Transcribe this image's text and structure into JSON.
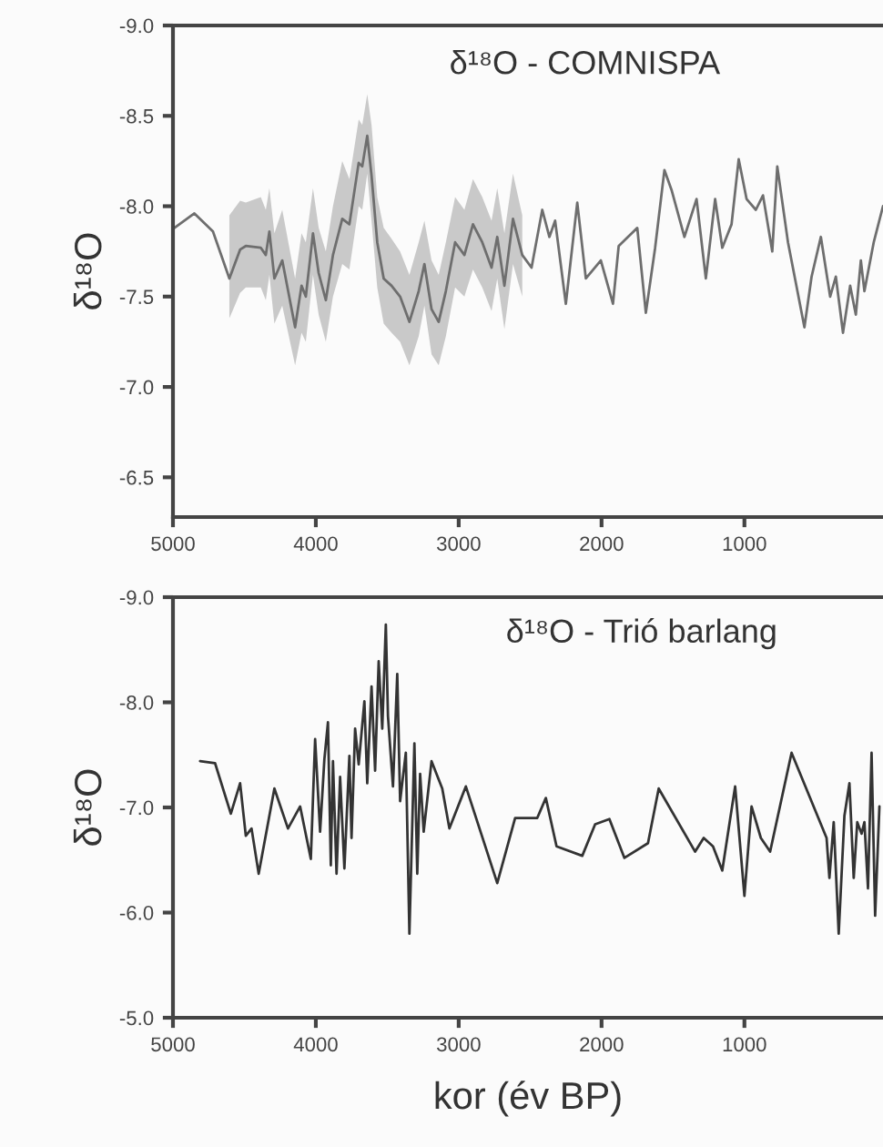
{
  "chart_data": [
    {
      "type": "line",
      "title": "δ¹⁸O - COMNISPA",
      "ylabel": "δ¹⁸O",
      "xlim": [
        5000,
        30
      ],
      "xticks": [
        5000,
        4000,
        3000,
        2000,
        1000
      ],
      "ylim": [
        -6.28,
        -9.0
      ],
      "yticks": [
        {
          "value": -9,
          "label": "-9.0"
        },
        -8.5,
        {
          "value": -8,
          "label": "-8.0"
        },
        -7.5,
        {
          "value": -7,
          "label": "-7.0"
        },
        -6.5
      ],
      "grid": false,
      "line_style": "solid",
      "series": [
        {
          "color": "#6e6e6e",
          "x": [
            4990,
            4850,
            4720,
            4605,
            4530,
            4490,
            4385,
            4350,
            4325,
            4290,
            4235,
            4145,
            4100,
            4070,
            4020,
            3980,
            3930,
            3880,
            3815,
            3765,
            3700,
            3675,
            3640,
            3610,
            3570,
            3525,
            3470,
            3410,
            3345,
            3280,
            3240,
            3190,
            3140,
            3090,
            3025,
            2960,
            2900,
            2835,
            2770,
            2730,
            2680,
            2620,
            2555,
            2490,
            2415,
            2365,
            2325,
            2250,
            2170,
            2110,
            2005,
            1920,
            1880,
            1815,
            1750,
            1690,
            1625,
            1560,
            1510,
            1420,
            1335,
            1270,
            1205,
            1155,
            1090,
            1040,
            985,
            920,
            870,
            805,
            770,
            695,
            580,
            530,
            465,
            400,
            360,
            310,
            260,
            220,
            185,
            160,
            95,
            30
          ],
          "values": [
            -7.88,
            -7.96,
            -7.86,
            -7.6,
            -7.76,
            -7.78,
            -7.77,
            -7.73,
            -7.86,
            -7.6,
            -7.7,
            -7.33,
            -7.56,
            -7.5,
            -7.85,
            -7.63,
            -7.48,
            -7.73,
            -7.93,
            -7.9,
            -8.24,
            -8.22,
            -8.39,
            -8.17,
            -7.8,
            -7.6,
            -7.56,
            -7.5,
            -7.36,
            -7.53,
            -7.68,
            -7.43,
            -7.36,
            -7.53,
            -7.8,
            -7.73,
            -7.9,
            -7.8,
            -7.66,
            -7.83,
            -7.56,
            -7.93,
            -7.73,
            -7.66,
            -7.98,
            -7.83,
            -7.92,
            -7.46,
            -8.02,
            -7.6,
            -7.7,
            -7.46,
            -7.78,
            -7.83,
            -7.88,
            -7.41,
            -7.77,
            -8.2,
            -8.09,
            -7.83,
            -8.04,
            -7.6,
            -8.04,
            -7.77,
            -7.9,
            -8.26,
            -8.04,
            -7.98,
            -8.06,
            -7.75,
            -8.22,
            -7.8,
            -7.33,
            -7.61,
            -7.83,
            -7.5,
            -7.61,
            -7.3,
            -7.56,
            -7.4,
            -7.7,
            -7.53,
            -7.8,
            -8.0
          ],
          "upper": [
            null,
            null,
            null,
            -7.95,
            -8.03,
            -8.02,
            -8.05,
            -7.98,
            -8.1,
            -7.85,
            -7.98,
            -7.6,
            -7.85,
            -7.8,
            -8.1,
            -7.88,
            -7.75,
            -8.0,
            -8.25,
            -8.15,
            -8.48,
            -8.45,
            -8.62,
            -8.45,
            -8.05,
            -7.88,
            -7.82,
            -7.75,
            -7.62,
            -7.8,
            -7.92,
            -7.7,
            -7.62,
            -7.8,
            -8.05,
            -7.98,
            -8.15,
            -8.05,
            -7.92,
            -8.1,
            -7.85,
            -8.18,
            -7.95,
            null,
            null,
            null,
            null,
            null,
            null,
            null,
            null,
            null,
            null,
            null,
            null,
            null,
            null,
            null,
            null,
            null,
            null,
            null,
            null,
            null,
            null,
            null,
            null,
            null,
            null,
            null,
            null,
            null,
            null,
            null,
            null,
            null,
            null,
            null,
            null,
            null,
            null,
            null,
            null,
            null
          ],
          "lower": [
            null,
            null,
            null,
            -7.38,
            -7.52,
            -7.55,
            -7.55,
            -7.48,
            -7.62,
            -7.35,
            -7.45,
            -7.12,
            -7.3,
            -7.25,
            -7.62,
            -7.4,
            -7.25,
            -7.5,
            -7.68,
            -7.65,
            -8.0,
            -7.98,
            -8.18,
            -7.92,
            -7.55,
            -7.35,
            -7.3,
            -7.25,
            -7.12,
            -7.28,
            -7.45,
            -7.18,
            -7.12,
            -7.28,
            -7.55,
            -7.5,
            -7.65,
            -7.55,
            -7.42,
            -7.6,
            -7.32,
            -7.68,
            -7.5,
            null,
            null,
            null,
            null,
            null,
            null,
            null,
            null,
            null,
            null,
            null,
            null,
            null,
            null,
            null,
            null,
            null,
            null,
            null,
            null,
            null,
            null,
            null,
            null,
            null,
            null,
            null,
            null,
            null,
            null,
            null,
            null,
            null,
            null,
            null,
            null,
            null,
            null,
            null,
            null,
            null
          ]
        }
      ]
    },
    {
      "type": "line",
      "title": "δ¹⁸O - Trió barlang",
      "ylabel": "δ¹⁸O",
      "xlabel": "kor (év BP)",
      "xlim": [
        5000,
        30
      ],
      "xticks": [
        5000,
        4000,
        3000,
        2000,
        1000
      ],
      "ylim": [
        -5.0,
        -9.0
      ],
      "yticks": [
        {
          "value": -9,
          "label": "-9.0"
        },
        {
          "value": -8,
          "label": "-8.0"
        },
        {
          "value": -7,
          "label": "-7.0"
        },
        {
          "value": -6,
          "label": "-6.0"
        },
        {
          "value": -5,
          "label": "-5.0"
        }
      ],
      "grid": false,
      "line_style": "solid",
      "series": [
        {
          "color": "#333333",
          "x": [
            4810,
            4705,
            4595,
            4530,
            4490,
            4450,
            4400,
            4290,
            4195,
            4110,
            4035,
            4005,
            3970,
            3940,
            3915,
            3895,
            3880,
            3855,
            3830,
            3800,
            3765,
            3750,
            3725,
            3700,
            3660,
            3640,
            3610,
            3585,
            3560,
            3535,
            3510,
            3495,
            3460,
            3430,
            3410,
            3370,
            3345,
            3310,
            3290,
            3270,
            3245,
            3190,
            3115,
            3065,
            2950,
            2730,
            2605,
            2450,
            2390,
            2315,
            2135,
            2045,
            1945,
            1840,
            1675,
            1600,
            1345,
            1285,
            1220,
            1155,
            1065,
            1000,
            950,
            885,
            820,
            670,
            425,
            405,
            375,
            340,
            300,
            265,
            235,
            210,
            180,
            160,
            135,
            110,
            85,
            55
          ],
          "values": [
            -7.44,
            -7.42,
            -6.94,
            -7.23,
            -6.73,
            -6.8,
            -6.37,
            -7.18,
            -6.8,
            -7.01,
            -6.51,
            -7.65,
            -6.77,
            -7.46,
            -7.81,
            -6.45,
            -7.44,
            -6.37,
            -7.29,
            -6.42,
            -7.49,
            -6.71,
            -7.75,
            -7.41,
            -8.01,
            -7.23,
            -8.15,
            -7.35,
            -8.39,
            -7.75,
            -8.74,
            -7.87,
            -7.2,
            -8.27,
            -7.06,
            -7.52,
            -5.8,
            -7.61,
            -6.37,
            -7.32,
            -6.77,
            -7.44,
            -7.18,
            -6.8,
            -7.2,
            -6.28,
            -6.9,
            -6.9,
            -7.09,
            -6.63,
            -6.54,
            -6.84,
            -6.89,
            -6.52,
            -6.66,
            -7.18,
            -6.58,
            -6.71,
            -6.63,
            -6.4,
            -7.2,
            -6.16,
            -7.01,
            -6.71,
            -6.58,
            -7.52,
            -6.71,
            -6.33,
            -6.86,
            -5.8,
            -6.92,
            -7.23,
            -6.33,
            -6.86,
            -6.75,
            -6.86,
            -6.23,
            -7.52,
            -5.97,
            -7.01
          ]
        }
      ]
    }
  ]
}
